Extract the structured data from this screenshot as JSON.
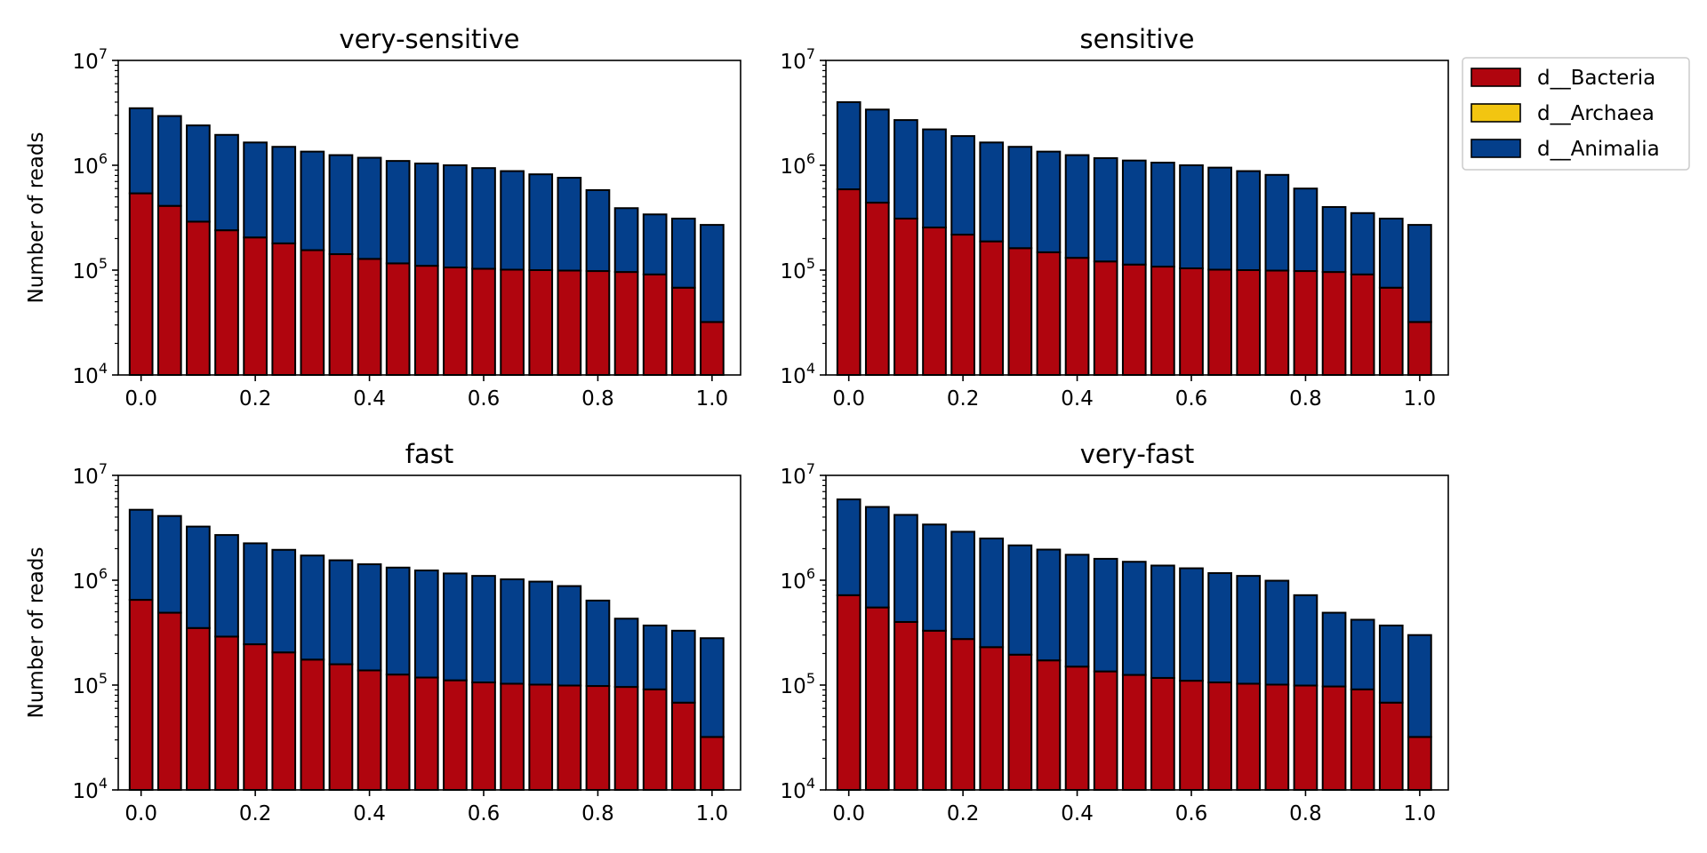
{
  "colors": {
    "d__Bacteria": "#b0050e",
    "d__Archaea": "#f2c511",
    "d__Animalia": "#043f8b"
  },
  "legend": {
    "placement": "outside-right",
    "items": [
      "d__Bacteria",
      "d__Archaea",
      "d__Animalia"
    ]
  },
  "chart_data": [
    {
      "type": "bar",
      "stacked": true,
      "title": "very-sensitive",
      "ylabel": "Number of reads",
      "yscale": "log",
      "ylim": [
        10000,
        10000000
      ],
      "xlim": [
        -0.04,
        1.05
      ],
      "ytick_exponents": [
        "4",
        "5",
        "6",
        "7"
      ],
      "xticks": [
        "0.0",
        "0.2",
        "0.4",
        "0.6",
        "0.8",
        "1.0"
      ],
      "x": [
        0.0,
        0.05,
        0.1,
        0.15,
        0.2,
        0.25,
        0.3,
        0.35,
        0.4,
        0.45,
        0.5,
        0.55,
        0.6,
        0.65,
        0.7,
        0.75,
        0.8,
        0.85,
        0.9,
        0.95,
        1.0
      ],
      "series": [
        {
          "name": "d__Bacteria",
          "values": [
            540000,
            410000,
            290000,
            240000,
            205000,
            180000,
            155000,
            142000,
            128000,
            116000,
            110000,
            106000,
            103000,
            101000,
            100000,
            99000,
            98000,
            96000,
            91000,
            68000,
            32000
          ]
        },
        {
          "name": "d__Archaea",
          "values": [
            0,
            0,
            0,
            0,
            0,
            0,
            0,
            0,
            0,
            0,
            0,
            0,
            0,
            0,
            0,
            0,
            0,
            0,
            0,
            0,
            0
          ]
        },
        {
          "name": "d__Animalia",
          "values": [
            2960000,
            2540000,
            2110000,
            1710000,
            1445000,
            1320000,
            1195000,
            1108000,
            1052000,
            984000,
            930000,
            894000,
            837000,
            779000,
            720000,
            661000,
            482000,
            294000,
            249000,
            242000,
            238000
          ]
        }
      ]
    },
    {
      "type": "bar",
      "stacked": true,
      "title": "sensitive",
      "ylabel": "",
      "yscale": "log",
      "ylim": [
        10000,
        10000000
      ],
      "xlim": [
        -0.04,
        1.05
      ],
      "ytick_exponents": [
        "4",
        "5",
        "6",
        "7"
      ],
      "xticks": [
        "0.0",
        "0.2",
        "0.4",
        "0.6",
        "0.8",
        "1.0"
      ],
      "x": [
        0.0,
        0.05,
        0.1,
        0.15,
        0.2,
        0.25,
        0.3,
        0.35,
        0.4,
        0.45,
        0.5,
        0.55,
        0.6,
        0.65,
        0.7,
        0.75,
        0.8,
        0.85,
        0.9,
        0.95,
        1.0
      ],
      "series": [
        {
          "name": "d__Bacteria",
          "values": [
            590000,
            440000,
            310000,
            255000,
            218000,
            188000,
            162000,
            148000,
            131000,
            121000,
            113000,
            108000,
            104000,
            101000,
            100000,
            99000,
            98000,
            96000,
            91000,
            68000,
            32000
          ]
        },
        {
          "name": "d__Archaea",
          "values": [
            0,
            0,
            0,
            0,
            0,
            0,
            0,
            0,
            0,
            0,
            0,
            0,
            0,
            0,
            0,
            0,
            0,
            0,
            0,
            0,
            0
          ]
        },
        {
          "name": "d__Animalia",
          "values": [
            3410000,
            2960000,
            2390000,
            1945000,
            1682000,
            1462000,
            1338000,
            1202000,
            1119000,
            1049000,
            997000,
            952000,
            896000,
            849000,
            780000,
            711000,
            502000,
            304000,
            259000,
            242000,
            238000
          ]
        }
      ]
    },
    {
      "type": "bar",
      "stacked": true,
      "title": "fast",
      "ylabel": "Number of reads",
      "yscale": "log",
      "ylim": [
        10000,
        10000000
      ],
      "xlim": [
        -0.04,
        1.05
      ],
      "ytick_exponents": [
        "4",
        "5",
        "6",
        "7"
      ],
      "xticks": [
        "0.0",
        "0.2",
        "0.4",
        "0.6",
        "0.8",
        "1.0"
      ],
      "x": [
        0.0,
        0.05,
        0.1,
        0.15,
        0.2,
        0.25,
        0.3,
        0.35,
        0.4,
        0.45,
        0.5,
        0.55,
        0.6,
        0.65,
        0.7,
        0.75,
        0.8,
        0.85,
        0.9,
        0.95,
        1.0
      ],
      "series": [
        {
          "name": "d__Bacteria",
          "values": [
            650000,
            490000,
            350000,
            290000,
            245000,
            205000,
            175000,
            158000,
            138000,
            126000,
            118000,
            111000,
            106000,
            103000,
            101000,
            99000,
            98000,
            96000,
            91000,
            68000,
            32000
          ]
        },
        {
          "name": "d__Archaea",
          "values": [
            0,
            0,
            0,
            0,
            0,
            0,
            0,
            0,
            0,
            0,
            0,
            0,
            0,
            0,
            0,
            0,
            0,
            0,
            0,
            0,
            0
          ]
        },
        {
          "name": "d__Animalia",
          "values": [
            4050000,
            3610000,
            2900000,
            2410000,
            2005000,
            1745000,
            1545000,
            1392000,
            1282000,
            1194000,
            1122000,
            1049000,
            994000,
            917000,
            869000,
            781000,
            542000,
            334000,
            279000,
            262000,
            248000
          ]
        }
      ]
    },
    {
      "type": "bar",
      "stacked": true,
      "title": "very-fast",
      "ylabel": "",
      "yscale": "log",
      "ylim": [
        10000,
        10000000
      ],
      "xlim": [
        -0.04,
        1.05
      ],
      "ytick_exponents": [
        "4",
        "5",
        "6",
        "7"
      ],
      "xticks": [
        "0.0",
        "0.2",
        "0.4",
        "0.6",
        "0.8",
        "1.0"
      ],
      "x": [
        0.0,
        0.05,
        0.1,
        0.15,
        0.2,
        0.25,
        0.3,
        0.35,
        0.4,
        0.45,
        0.5,
        0.55,
        0.6,
        0.65,
        0.7,
        0.75,
        0.8,
        0.85,
        0.9,
        0.95,
        1.0
      ],
      "series": [
        {
          "name": "d__Bacteria",
          "values": [
            720000,
            550000,
            400000,
            330000,
            275000,
            230000,
            195000,
            172000,
            150000,
            135000,
            125000,
            117000,
            110000,
            106000,
            103000,
            101000,
            99000,
            97000,
            91000,
            68000,
            32000
          ]
        },
        {
          "name": "d__Archaea",
          "values": [
            0,
            0,
            0,
            0,
            0,
            0,
            0,
            0,
            0,
            0,
            0,
            0,
            0,
            0,
            0,
            0,
            0,
            0,
            0,
            0,
            0
          ]
        },
        {
          "name": "d__Animalia",
          "values": [
            5180000,
            4450000,
            3800000,
            3070000,
            2625000,
            2270000,
            1955000,
            1788000,
            1600000,
            1465000,
            1375000,
            1263000,
            1190000,
            1064000,
            997000,
            889000,
            621000,
            393000,
            329000,
            302000,
            268000
          ]
        }
      ]
    }
  ]
}
